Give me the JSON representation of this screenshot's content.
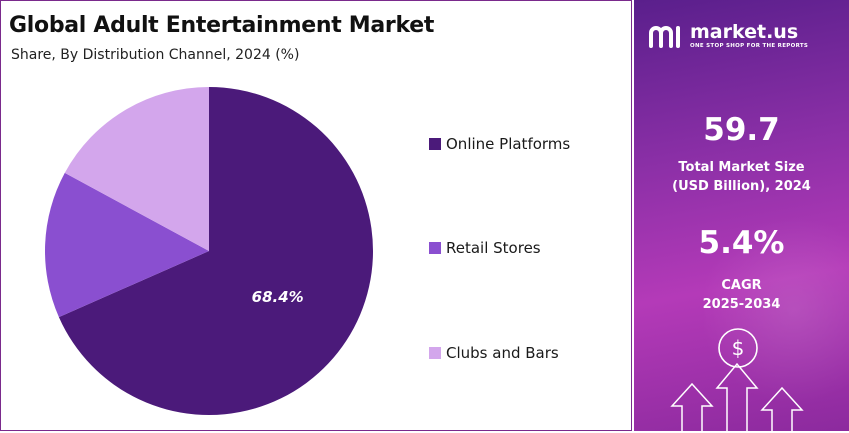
{
  "header": {
    "title": "Global Adult Entertainment Market",
    "subtitle": "Share, By Distribution Channel, 2024 (%)"
  },
  "chart_data": {
    "type": "pie",
    "title": "Global Adult Entertainment Market",
    "subtitle": "Share, By Distribution Channel, 2024 (%)",
    "categories": [
      "Online Platforms",
      "Retail Stores",
      "Clubs and Bars"
    ],
    "values": [
      68.4,
      14.5,
      17.1
    ],
    "colors": [
      "#4b1a7a",
      "#8a4fd0",
      "#d3a6ec"
    ],
    "data_labels": [
      "68.4%",
      "",
      ""
    ],
    "legend_position": "right"
  },
  "legend": {
    "items": [
      {
        "label": "Online Platforms",
        "color": "#4b1a7a"
      },
      {
        "label": "Retail Stores",
        "color": "#8a4fd0"
      },
      {
        "label": "Clubs and Bars",
        "color": "#d3a6ec"
      }
    ]
  },
  "sidebar": {
    "brand": "market.us",
    "tagline": "ONE STOP SHOP FOR THE REPORTS",
    "market_size": {
      "value": "59.7",
      "label_line1": "Total Market Size",
      "label_line2": "(USD Billion), 2024"
    },
    "cagr": {
      "value": "5.4%",
      "label_line1": "CAGR",
      "label_line2": "2025-2034"
    },
    "dollar_symbol": "$",
    "icons": [
      "logo-icon",
      "dollar-icon",
      "arrow-up-icon"
    ]
  }
}
